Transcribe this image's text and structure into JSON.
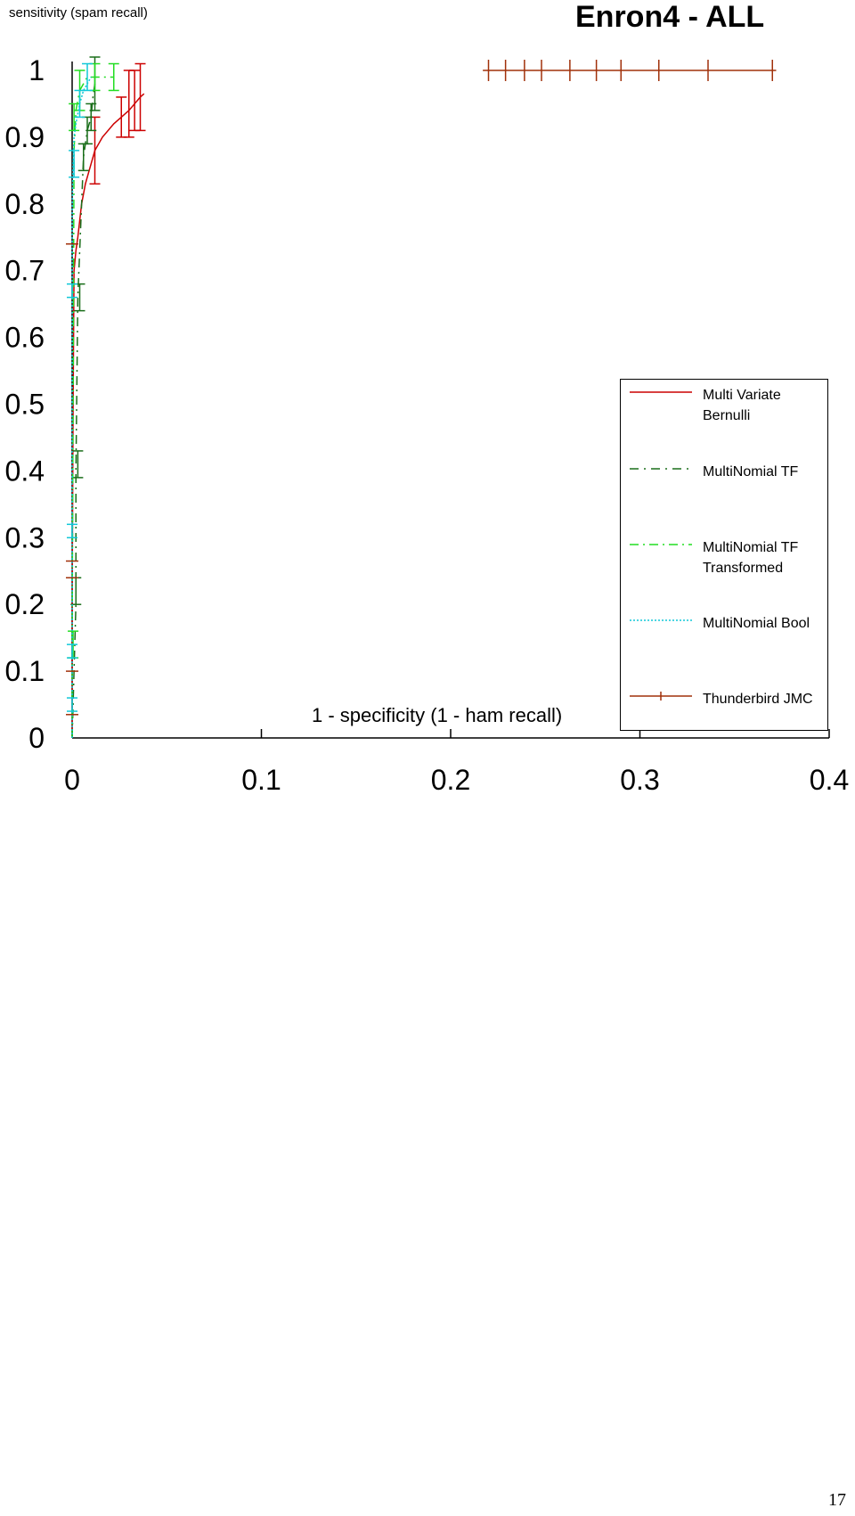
{
  "page": {
    "title": "Enron4 - ALL",
    "y_axis_label": "sensitivity (spam recall)",
    "x_axis_label": "1 - specificity (1 - ham recall)",
    "page_number": "17"
  },
  "colors": {
    "mvb": "#cc0000",
    "mn_tf": "#1a6e1a",
    "mn_tf_transformed": "#22dd22",
    "mn_bool": "#11c8d8",
    "thunderbird": "#a0300a"
  },
  "legend": [
    {
      "label": "Multi Variate\nBernulli",
      "color": "#cc0000",
      "style": "solid"
    },
    {
      "label": "MultiNomial TF",
      "color": "#1a6e1a",
      "style": "dashdot"
    },
    {
      "label": "MultiNomial TF\nTransformed",
      "color": "#22dd22",
      "style": "dashdot"
    },
    {
      "label": "MultiNomial Bool",
      "color": "#11c8d8",
      "style": "dotted"
    },
    {
      "label": "Thunderbird JMC",
      "color": "#a0300a",
      "style": "solid-tick"
    }
  ],
  "chart_data": {
    "type": "line",
    "title": "Enron4 - ALL",
    "xlabel": "1 - specificity (1 - ham recall)",
    "ylabel": "sensitivity (spam recall)",
    "xlim": [
      0,
      0.4
    ],
    "ylim": [
      0,
      1
    ],
    "x_ticks": [
      "0",
      "0.1",
      "0.2",
      "0.3",
      "0.4"
    ],
    "y_ticks": [
      "0",
      "0.1",
      "0.2",
      "0.3",
      "0.4",
      "0.5",
      "0.6",
      "0.7",
      "0.8",
      "0.9",
      "1"
    ],
    "grid": false,
    "legend_position": "right",
    "series": [
      {
        "name": "Multi Variate Bernulli",
        "color": "#cc0000",
        "style": "solid",
        "x": [
          0,
          0,
          0.0005,
          0.001,
          0.002,
          0.003,
          0.005,
          0.007,
          0.009,
          0.012,
          0.016,
          0.022,
          0.026,
          0.03,
          0.033,
          0.036,
          0.038
        ],
        "y": [
          0,
          0.2,
          0.5,
          0.7,
          0.73,
          0.75,
          0.8,
          0.83,
          0.85,
          0.88,
          0.9,
          0.92,
          0.93,
          0.94,
          0.95,
          0.96,
          0.965
        ],
        "error_x": [
          0.012,
          0.026,
          0.03,
          0.033,
          0.036
        ],
        "error_y": [
          0.88,
          0.93,
          0.95,
          0.955,
          0.96
        ],
        "error_half": [
          0.05,
          0.03,
          0.05,
          0.045,
          0.05
        ]
      },
      {
        "name": "MultiNomial TF",
        "color": "#1a6e1a",
        "style": "dashdot",
        "x": [
          0,
          0.001,
          0.002,
          0.002,
          0.003,
          0.004,
          0.005,
          0.006,
          0.008,
          0.01,
          0.011,
          0.012
        ],
        "y": [
          0,
          0.1,
          0.2,
          0.4,
          0.66,
          0.73,
          0.8,
          0.87,
          0.91,
          0.93,
          0.96,
          0.98
        ],
        "error_x": [
          0.002,
          0.003,
          0.004,
          0.006,
          0.008,
          0.01,
          0.012
        ],
        "error_y": [
          0.22,
          0.41,
          0.66,
          0.87,
          0.91,
          0.93,
          0.98
        ],
        "error_half": [
          0.02,
          0.02,
          0.02,
          0.02,
          0.02,
          0.02,
          0.04
        ]
      },
      {
        "name": "MultiNomial TF Transformed",
        "color": "#22dd22",
        "style": "dashdot",
        "x": [
          0,
          0,
          0.0005,
          0.001,
          0.002,
          0.004,
          0.008,
          0.012,
          0.018,
          0.022
        ],
        "y": [
          0,
          0.15,
          0.5,
          0.88,
          0.94,
          0.97,
          0.99,
          0.99,
          0.99,
          0.99
        ],
        "error_x": [
          0.0005,
          0.001,
          0.004,
          0.012,
          0.022
        ],
        "error_y": [
          0.14,
          0.93,
          0.97,
          0.99,
          0.99
        ],
        "error_half": [
          0.02,
          0.02,
          0.03,
          0.02,
          0.02
        ]
      },
      {
        "name": "MultiNomial Bool",
        "color": "#11c8d8",
        "style": "dotted",
        "x": [
          0,
          0,
          0,
          0,
          0,
          0.0005,
          0.001,
          0.002,
          0.004,
          0.006,
          0.008,
          0.01
        ],
        "y": [
          0,
          0.05,
          0.3,
          0.6,
          0.78,
          0.86,
          0.9,
          0.92,
          0.95,
          0.97,
          0.98,
          0.99
        ],
        "error_x": [
          0,
          0,
          0,
          0,
          0.001,
          0.004,
          0.008
        ],
        "error_y": [
          0.05,
          0.13,
          0.31,
          0.67,
          0.86,
          0.95,
          0.99
        ],
        "error_half": [
          0.01,
          0.01,
          0.01,
          0.01,
          0.02,
          0.02,
          0.02
        ]
      },
      {
        "name": "Thunderbird JMC",
        "color": "#a0300a",
        "style": "solid-tick",
        "x": [
          0.217,
          0.372
        ],
        "y": [
          1.0,
          1.0
        ],
        "tick_x": [
          0.22,
          0.229,
          0.239,
          0.248,
          0.263,
          0.277,
          0.29,
          0.31,
          0.336,
          0.37
        ],
        "tick_y": 1.0,
        "vertical_ticks_x": [
          0,
          0
        ],
        "vertical_ticks_y": [
          0.035,
          0.1,
          0.24,
          0.265,
          0.74
        ]
      }
    ]
  }
}
